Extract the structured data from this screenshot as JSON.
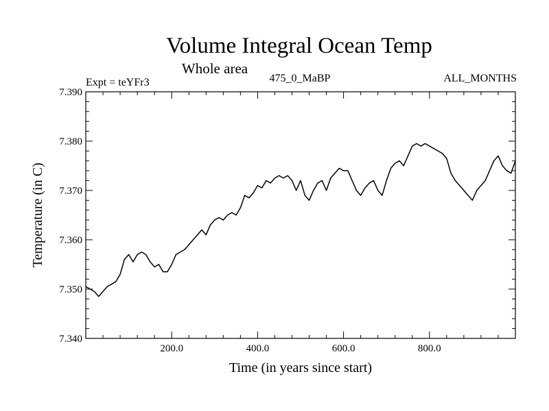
{
  "chart_data": {
    "type": "line",
    "title": "Volume Integral Ocean Temp",
    "subtitle": "Whole area",
    "annotations": {
      "left": "Expt = teYFr3",
      "center": "475_0_MaBP",
      "right": "ALL_MONTHS"
    },
    "xlabel": "Time (in years since start)",
    "ylabel": "Temperature (in C)",
    "xlim": [
      0,
      1000
    ],
    "ylim": [
      7.34,
      7.39
    ],
    "x_ticks": [
      200,
      400,
      600,
      800
    ],
    "x_tick_labels": [
      "200.0",
      "400.0",
      "600.0",
      "800.0"
    ],
    "y_ticks": [
      7.34,
      7.35,
      7.36,
      7.37,
      7.38,
      7.39
    ],
    "y_tick_labels": [
      "7.340",
      "7.350",
      "7.360",
      "7.370",
      "7.380",
      "7.390"
    ],
    "grid": false,
    "series": [
      {
        "name": "Volume Integral Ocean Temp",
        "x": [
          0,
          10,
          20,
          30,
          40,
          50,
          60,
          70,
          80,
          90,
          100,
          110,
          120,
          130,
          140,
          150,
          160,
          170,
          180,
          190,
          200,
          210,
          220,
          230,
          240,
          250,
          260,
          270,
          280,
          290,
          300,
          310,
          320,
          330,
          340,
          350,
          360,
          370,
          380,
          390,
          400,
          410,
          420,
          430,
          440,
          450,
          460,
          470,
          480,
          490,
          500,
          510,
          520,
          530,
          540,
          550,
          560,
          570,
          580,
          590,
          600,
          610,
          620,
          630,
          640,
          650,
          660,
          670,
          680,
          690,
          700,
          710,
          720,
          730,
          740,
          750,
          760,
          770,
          780,
          790,
          800,
          810,
          820,
          830,
          840,
          850,
          860,
          870,
          880,
          890,
          900,
          910,
          920,
          930,
          940,
          950,
          960,
          970,
          980,
          990,
          1000
        ],
        "y": [
          7.3505,
          7.35,
          7.3495,
          7.3485,
          7.3495,
          7.3505,
          7.351,
          7.3515,
          7.353,
          7.356,
          7.357,
          7.3555,
          7.357,
          7.3575,
          7.357,
          7.3555,
          7.3545,
          7.355,
          7.3535,
          7.3535,
          7.355,
          7.357,
          7.3575,
          7.358,
          7.359,
          7.36,
          7.361,
          7.362,
          7.361,
          7.363,
          7.364,
          7.3645,
          7.364,
          7.365,
          7.3655,
          7.365,
          7.3665,
          7.369,
          7.3685,
          7.3695,
          7.371,
          7.3705,
          7.372,
          7.3715,
          7.3725,
          7.373,
          7.3725,
          7.373,
          7.372,
          7.37,
          7.372,
          7.369,
          7.368,
          7.37,
          7.3715,
          7.372,
          7.37,
          7.3725,
          7.3735,
          7.3745,
          7.374,
          7.374,
          7.372,
          7.37,
          7.369,
          7.3705,
          7.3715,
          7.372,
          7.37,
          7.369,
          7.372,
          7.3745,
          7.3755,
          7.376,
          7.375,
          7.377,
          7.379,
          7.3795,
          7.379,
          7.3795,
          7.379,
          7.3785,
          7.378,
          7.3775,
          7.3765,
          7.3735,
          7.372,
          7.371,
          7.37,
          7.369,
          7.368,
          7.37,
          7.371,
          7.372,
          7.374,
          7.376,
          7.377,
          7.375,
          7.374,
          7.3735,
          7.376
        ]
      }
    ]
  }
}
